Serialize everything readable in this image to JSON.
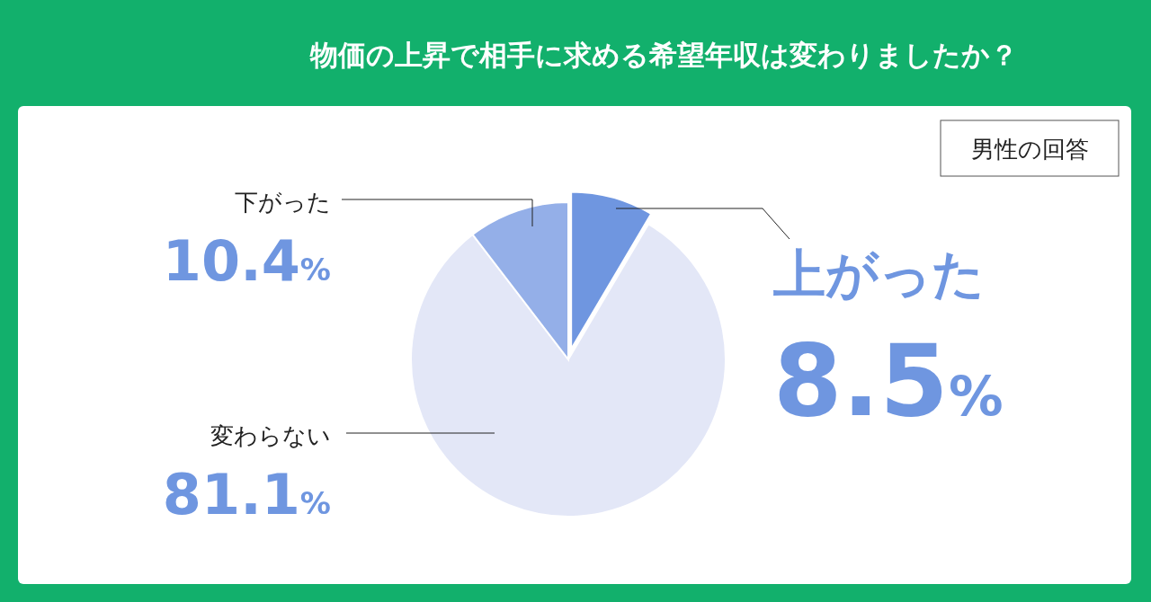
{
  "chart_data": {
    "type": "pie",
    "title": "物価の上昇で相手に求める希望年収は変わりましたか？",
    "subtitle": "男性の回答",
    "categories": [
      "上がった",
      "変わらない",
      "下がった"
    ],
    "values": [
      8.5,
      81.1,
      10.4
    ],
    "value_labels": [
      "8.5%",
      "81.1%",
      "10.4%"
    ],
    "colors": [
      "#6f96e0",
      "#e3e7f7",
      "#94afe8"
    ]
  }
}
